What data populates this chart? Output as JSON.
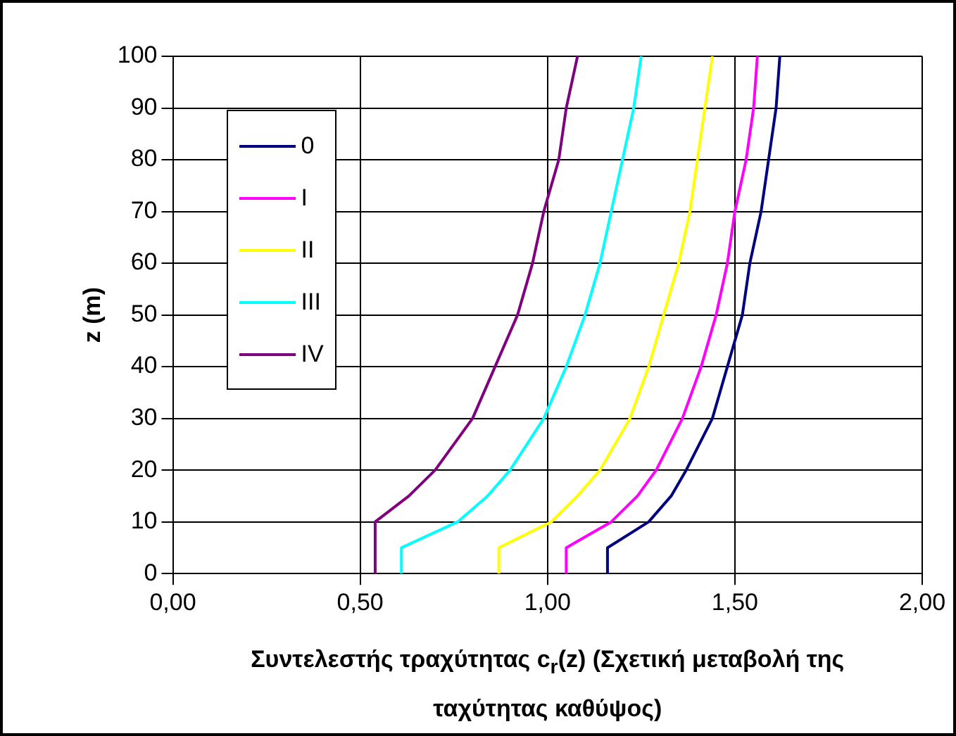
{
  "chart_data": {
    "type": "line",
    "xlabel": "Συντελεστής τραχύτητας c$_{r}$(z) (Σχετική μεταβολή της ταχύτητας καθύψος)",
    "ylabel": "z (m)",
    "xlim": [
      0,
      2
    ],
    "xticks": [
      {
        "value": 0,
        "label": "0,00"
      },
      {
        "value": 0.5,
        "label": "0,50"
      },
      {
        "value": 1,
        "label": "1,00"
      },
      {
        "value": 1.5,
        "label": "1,50"
      },
      {
        "value": 2,
        "label": "2,00"
      }
    ],
    "ylim": [
      0,
      100
    ],
    "yticks": [
      0,
      10,
      20,
      30,
      40,
      50,
      60,
      70,
      80,
      90,
      100
    ],
    "grid": true,
    "legend": "top left",
    "marker": "none",
    "line_style": "solid",
    "series": [
      {
        "name": "0",
        "color": "#000080",
        "x": [
          1.16,
          1.16,
          1.27,
          1.33,
          1.37,
          1.44,
          1.48,
          1.52,
          1.54,
          1.57,
          1.59,
          1.61,
          1.62
        ],
        "values": [
          0,
          5,
          10,
          15,
          20,
          30,
          40,
          50,
          60,
          70,
          80,
          90,
          100
        ]
      },
      {
        "name": "I",
        "color": "#ff00ff",
        "x": [
          1.05,
          1.05,
          1.17,
          1.24,
          1.29,
          1.36,
          1.41,
          1.45,
          1.48,
          1.5,
          1.53,
          1.55,
          1.56
        ],
        "values": [
          0,
          5,
          10,
          15,
          20,
          30,
          40,
          50,
          60,
          70,
          80,
          90,
          100
        ]
      },
      {
        "name": "II",
        "color": "#ffff00",
        "x": [
          0.87,
          0.87,
          1.01,
          1.08,
          1.14,
          1.22,
          1.27,
          1.31,
          1.35,
          1.38,
          1.4,
          1.42,
          1.44
        ],
        "values": [
          0,
          5,
          10,
          15,
          20,
          30,
          40,
          50,
          60,
          70,
          80,
          90,
          100
        ]
      },
      {
        "name": "III",
        "color": "#00ffff",
        "x": [
          0.61,
          0.61,
          0.76,
          0.84,
          0.9,
          0.99,
          1.05,
          1.1,
          1.14,
          1.17,
          1.2,
          1.23,
          1.25
        ],
        "values": [
          0,
          5,
          10,
          15,
          20,
          30,
          40,
          50,
          60,
          70,
          80,
          90,
          100
        ]
      },
      {
        "name": "IV",
        "color": "#800080",
        "x": [
          0.54,
          0.54,
          0.63,
          0.7,
          0.8,
          0.86,
          0.92,
          0.96,
          0.99,
          1.03,
          1.05,
          1.08
        ],
        "values": [
          0,
          10,
          15,
          20,
          30,
          40,
          50,
          60,
          70,
          80,
          90,
          100
        ]
      }
    ]
  }
}
